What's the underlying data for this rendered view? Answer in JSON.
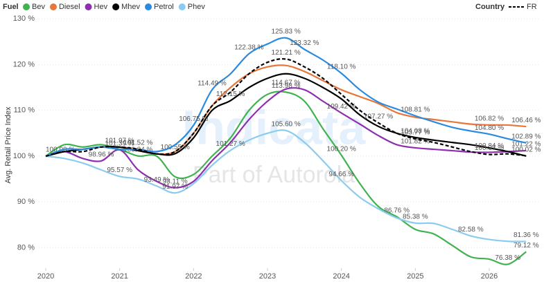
{
  "chart_data": {
    "type": "line",
    "y_label": "Avg. Retail Price Index",
    "legend_title": "Fuel",
    "country_legend_title": "Country",
    "watermark": {
      "title": "Indicata",
      "subtitle": "Part of Autorola"
    },
    "x": [
      2020,
      2020.25,
      2020.5,
      2020.75,
      2021,
      2021.25,
      2021.5,
      2021.75,
      2022,
      2022.25,
      2022.5,
      2022.75,
      2023,
      2023.25,
      2023.5,
      2023.75,
      2024,
      2024.25,
      2024.5,
      2024.75,
      2025,
      2025.25,
      2025.5,
      2025.75,
      2026,
      2026.25,
      2026.5
    ],
    "xlim": [
      2020,
      2026.6
    ],
    "xticks": [
      2020,
      2021,
      2022,
      2023,
      2024,
      2025,
      2026
    ],
    "ylim": [
      76,
      132
    ],
    "yticks": [
      {
        "value": 80,
        "label": "80 %"
      },
      {
        "value": 90,
        "label": "90 %"
      },
      {
        "value": 100,
        "label": "100 %"
      },
      {
        "value": 110,
        "label": "110 %"
      },
      {
        "value": 120,
        "label": "120 %"
      },
      {
        "value": 130,
        "label": "130 %"
      }
    ],
    "grid": true,
    "series": [
      {
        "name": "Bev",
        "color": "#3fb34f",
        "values": [
          100.0,
          102.5,
          102,
          102.5,
          101.5,
          100.04,
          100,
          95.5,
          96,
          100,
          104,
          110,
          113.5,
          113.98,
          112,
          106,
          100.2,
          94,
          89,
          86.76,
          84,
          83,
          80.5,
          78,
          77.5,
          76.38,
          79.12
        ],
        "value_labels": [
          null,
          null,
          null,
          null,
          null,
          "100.04 %",
          null,
          null,
          null,
          null,
          null,
          null,
          null,
          "113.98 %",
          null,
          null,
          "100.20 %",
          null,
          null,
          "86.76 %",
          null,
          null,
          null,
          null,
          null,
          "76.38 %",
          "79.12 %"
        ]
      },
      {
        "name": "Diesel",
        "color": "#e8763a",
        "values": [
          100.0,
          101,
          101.5,
          102,
          101.97,
          101.5,
          100.5,
          101,
          105,
          111,
          115,
          118,
          119.5,
          119.8,
          118.5,
          116.5,
          114.5,
          113,
          111.5,
          109.5,
          108.5,
          108,
          107.5,
          107,
          106.82,
          106.8,
          106.46
        ],
        "value_labels": [
          null,
          null,
          null,
          null,
          "101.97 %",
          null,
          null,
          null,
          null,
          null,
          null,
          null,
          null,
          null,
          null,
          null,
          null,
          null,
          null,
          null,
          null,
          null,
          null,
          null,
          "106.82 %",
          null,
          "106.46 %"
        ]
      },
      {
        "name": "Hev",
        "color": "#8e2fb0",
        "values": [
          100.0,
          101,
          99.5,
          98.96,
          101.39,
          97,
          94.5,
          93.11,
          94.5,
          99,
          103,
          108,
          112,
          114.67,
          114.5,
          112,
          109.42,
          107,
          104.5,
          102.5,
          101.82,
          101.5,
          101.2,
          100.9,
          100.84,
          101,
          101.22
        ],
        "value_labels": [
          null,
          null,
          null,
          "98.96 %",
          "101.39 %",
          null,
          null,
          "93.11 %",
          null,
          null,
          null,
          null,
          null,
          "114.67 %",
          null,
          null,
          "109.42 %",
          null,
          null,
          null,
          "101.82 %",
          null,
          null,
          null,
          "100.84 %",
          null,
          "101.22 %"
        ]
      },
      {
        "name": "Mhev",
        "color": "#000000",
        "values": [
          100.0,
          101,
          101.5,
          102,
          101.97,
          101.2,
          100.5,
          100.55,
          104,
          110,
          112.15,
          115,
          117,
          118,
          117,
          115,
          112.5,
          109,
          106.5,
          105,
          104.08,
          103.5,
          103,
          102.5,
          101.8,
          101,
          100.02
        ],
        "value_labels": [
          "100.00 %",
          null,
          null,
          null,
          null,
          null,
          null,
          "100.55 %",
          null,
          null,
          "112.15 %",
          null,
          null,
          null,
          null,
          null,
          null,
          null,
          null,
          null,
          "104.08 %",
          null,
          null,
          null,
          null,
          null,
          "100.02 %"
        ]
      },
      {
        "name": "Petrol",
        "color": "#2a8ae0",
        "values": [
          100.0,
          101.5,
          101.5,
          102,
          101.5,
          101.52,
          101,
          102.5,
          106.75,
          114.49,
          118,
          122.38,
          124.5,
          125.83,
          123.32,
          121,
          118.1,
          114.5,
          111.8,
          110.3,
          108.81,
          107.5,
          106.3,
          105.5,
          104.8,
          103.8,
          102.89
        ],
        "value_labels": [
          null,
          null,
          null,
          null,
          null,
          "101.52 %",
          null,
          null,
          "106.75 %",
          "114.49 %",
          null,
          "122.38 %",
          null,
          "125.83 %",
          "123.32 %",
          null,
          "118.10 %",
          null,
          null,
          null,
          "108.81 %",
          null,
          null,
          null,
          "104.80 %",
          null,
          "102.89 %"
        ]
      },
      {
        "name": "Phev",
        "color": "#8ccbf0",
        "values": [
          100.0,
          99.5,
          98.5,
          97,
          95.57,
          95,
          93.49,
          91.97,
          94,
          98,
          101.27,
          103.5,
          105,
          105.6,
          103,
          99,
          94.66,
          91,
          88.5,
          86.5,
          85.38,
          85.3,
          84,
          82.58,
          81.8,
          81.4,
          81.36
        ],
        "value_labels": [
          null,
          null,
          null,
          null,
          "95.57 %",
          null,
          "93.49 %",
          "91.97 %",
          null,
          null,
          "101.27 %",
          null,
          null,
          "105.60 %",
          null,
          null,
          "94.66 %",
          null,
          null,
          null,
          "85.38 %",
          null,
          null,
          "82.58 %",
          null,
          null,
          "81.36 %"
        ]
      },
      {
        "name": "FR",
        "color": "#000000",
        "dashed": true,
        "values": [
          100.0,
          101,
          101,
          102,
          102,
          101.5,
          100.5,
          101,
          105,
          111,
          114,
          118,
          120.5,
          121.21,
          119.5,
          117,
          113.5,
          110,
          107.27,
          105,
          103.77,
          103,
          102,
          101,
          100.37,
          100.5,
          100.1
        ],
        "value_labels": [
          null,
          null,
          null,
          null,
          null,
          null,
          null,
          null,
          null,
          null,
          null,
          null,
          null,
          "121.21 %",
          null,
          null,
          null,
          null,
          "107.27 %",
          null,
          "103.77 %",
          null,
          null,
          null,
          "100.37 %",
          null,
          null
        ]
      }
    ]
  }
}
